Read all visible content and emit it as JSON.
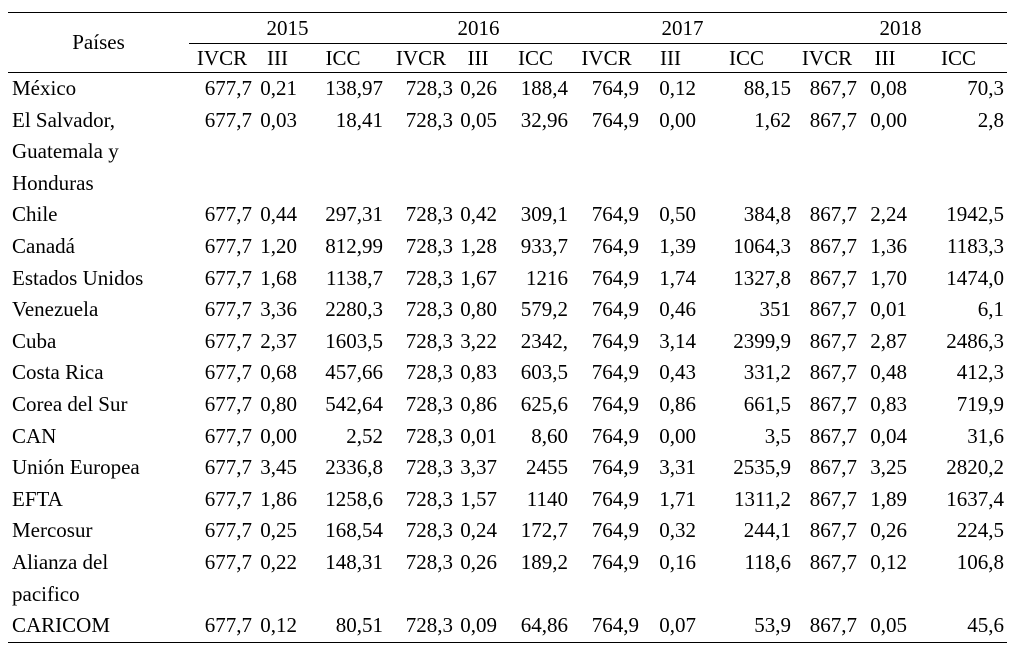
{
  "table": {
    "corner_label": "Países",
    "years": [
      "2015",
      "2016",
      "2017",
      "2018"
    ],
    "sub_headers": [
      "IVCR",
      "III",
      "ICC"
    ],
    "rows": [
      {
        "country": [
          "México"
        ],
        "v": [
          "677,7",
          "0,21",
          "138,97",
          "728,3",
          "0,26",
          "188,4",
          "764,9",
          "0,12",
          "88,15",
          "867,7",
          "0,08",
          "70,3"
        ]
      },
      {
        "country": [
          "El Salvador,",
          "Guatemala y",
          "Honduras"
        ],
        "v": [
          "677,7",
          "0,03",
          "18,41",
          "728,3",
          "0,05",
          "32,96",
          "764,9",
          "0,00",
          "1,62",
          "867,7",
          "0,00",
          "2,8"
        ]
      },
      {
        "country": [
          "Chile"
        ],
        "v": [
          "677,7",
          "0,44",
          "297,31",
          "728,3",
          "0,42",
          "309,1",
          "764,9",
          "0,50",
          "384,8",
          "867,7",
          "2,24",
          "1942,5"
        ]
      },
      {
        "country": [
          "Canadá"
        ],
        "v": [
          "677,7",
          "1,20",
          "812,99",
          "728,3",
          "1,28",
          "933,7",
          "764,9",
          "1,39",
          "1064,3",
          "867,7",
          "1,36",
          "1183,3"
        ]
      },
      {
        "country": [
          "Estados Unidos"
        ],
        "v": [
          "677,7",
          "1,68",
          "1138,7",
          "728,3",
          "1,67",
          "1216",
          "764,9",
          "1,74",
          "1327,8",
          "867,7",
          "1,70",
          "1474,0"
        ]
      },
      {
        "country": [
          "Venezuela"
        ],
        "v": [
          "677,7",
          "3,36",
          "2280,3",
          "728,3",
          "0,80",
          "579,2",
          "764,9",
          "0,46",
          "351",
          "867,7",
          "0,01",
          "6,1"
        ]
      },
      {
        "country": [
          "Cuba"
        ],
        "v": [
          "677,7",
          "2,37",
          "1603,5",
          "728,3",
          "3,22",
          "2342,",
          "764,9",
          "3,14",
          "2399,9",
          "867,7",
          "2,87",
          "2486,3"
        ]
      },
      {
        "country": [
          "Costa Rica"
        ],
        "v": [
          "677,7",
          "0,68",
          "457,66",
          "728,3",
          "0,83",
          "603,5",
          "764,9",
          "0,43",
          "331,2",
          "867,7",
          "0,48",
          "412,3"
        ]
      },
      {
        "country": [
          "Corea del Sur"
        ],
        "v": [
          "677,7",
          "0,80",
          "542,64",
          "728,3",
          "0,86",
          "625,6",
          "764,9",
          "0,86",
          "661,5",
          "867,7",
          "0,83",
          "719,9"
        ]
      },
      {
        "country": [
          "CAN"
        ],
        "v": [
          "677,7",
          "0,00",
          "2,52",
          "728,3",
          "0,01",
          "8,60",
          "764,9",
          "0,00",
          "3,5",
          "867,7",
          "0,04",
          "31,6"
        ]
      },
      {
        "country": [
          "Unión Europea"
        ],
        "v": [
          "677,7",
          "3,45",
          "2336,8",
          "728,3",
          "3,37",
          "2455",
          "764,9",
          "3,31",
          "2535,9",
          "867,7",
          "3,25",
          "2820,2"
        ]
      },
      {
        "country": [
          "EFTA"
        ],
        "v": [
          "677,7",
          "1,86",
          "1258,6",
          "728,3",
          "1,57",
          "1140",
          "764,9",
          "1,71",
          "1311,2",
          "867,7",
          "1,89",
          "1637,4"
        ]
      },
      {
        "country": [
          "Mercosur"
        ],
        "v": [
          "677,7",
          "0,25",
          "168,54",
          "728,3",
          "0,24",
          "172,7",
          "764,9",
          "0,32",
          "244,1",
          "867,7",
          "0,26",
          "224,5"
        ]
      },
      {
        "country": [
          "Alianza del",
          "pacifico"
        ],
        "v": [
          "677,7",
          "0,22",
          "148,31",
          "728,3",
          "0,26",
          "189,2",
          "764,9",
          "0,16",
          "118,6",
          "867,7",
          "0,12",
          "106,8"
        ]
      },
      {
        "country": [
          "CARICOM"
        ],
        "v": [
          "677,7",
          "0,12",
          "80,51",
          "728,3",
          "0,09",
          "64,86",
          "764,9",
          "0,07",
          "53,9",
          "867,7",
          "0,05",
          "45,6"
        ]
      }
    ]
  }
}
